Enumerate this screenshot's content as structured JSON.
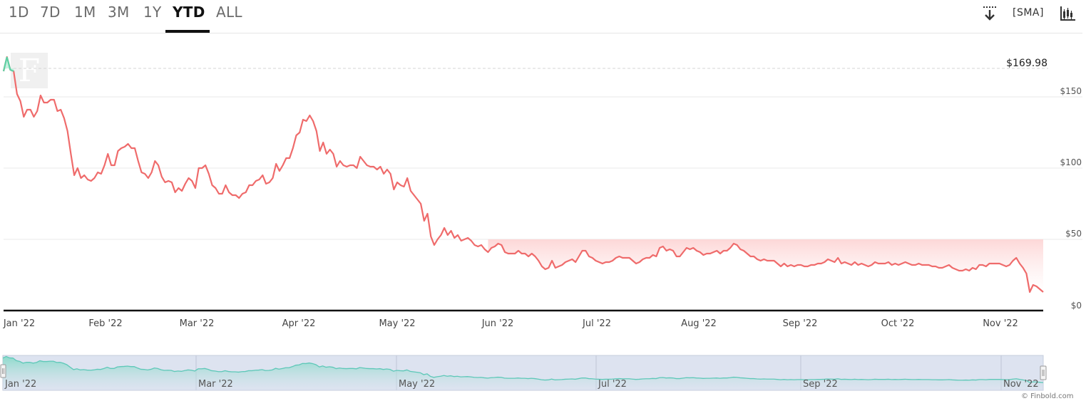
{
  "range_tabs": [
    {
      "label": "1D",
      "active": false
    },
    {
      "label": "7D",
      "active": false
    },
    {
      "label": "1M",
      "active": false
    },
    {
      "label": "3M",
      "active": false
    },
    {
      "label": "1Y",
      "active": false
    },
    {
      "label": "YTD",
      "active": true
    },
    {
      "label": "ALL",
      "active": false
    }
  ],
  "toolbar": {
    "download_icon": "download-icon",
    "sma_label": "[SMA]",
    "candlestick_icon": "candlestick-icon"
  },
  "credit": "© Finbold.com",
  "colors": {
    "line_down": "#ef6b6b",
    "line_up": "#5ed1a4",
    "fill_down": "#fde2e2",
    "navigator_bg": "#dde3f0",
    "navigator_line": "#5ec8b8"
  },
  "chart_data": {
    "type": "line",
    "start_label": "$169.98",
    "reference_value": 169.98,
    "ylim": [
      0,
      180
    ],
    "yticks": [
      {
        "value": 0,
        "label": "$0"
      },
      {
        "value": 50,
        "label": "$50"
      },
      {
        "value": 100,
        "label": "$100"
      },
      {
        "value": 150,
        "label": "$150"
      }
    ],
    "xticks": [
      "Jan '22",
      "Feb '22",
      "Mar '22",
      "Apr '22",
      "May '22",
      "Jun '22",
      "Jul '22",
      "Aug '22",
      "Sep '22",
      "Oct '22",
      "Nov '22"
    ],
    "navigator_ticks": [
      "Jan '22",
      "Mar '22",
      "May '22",
      "Jul '22",
      "Sep '22",
      "Nov '22"
    ],
    "series": [
      {
        "values": [
          168,
          178,
          169,
          168,
          152,
          147,
          136,
          141,
          141,
          136,
          140,
          151,
          146,
          146,
          148,
          148,
          140,
          141,
          135,
          126,
          110,
          95,
          100,
          93,
          95,
          92,
          91,
          93,
          97,
          96,
          102,
          110,
          102,
          102,
          112,
          114,
          115,
          117,
          114,
          114,
          105,
          97,
          96,
          93,
          97,
          105,
          102,
          94,
          90,
          91,
          90,
          83,
          86,
          84,
          89,
          93,
          91,
          86,
          100,
          100,
          102,
          96,
          88,
          86,
          82,
          82,
          88,
          83,
          81,
          81,
          79,
          82,
          83,
          88,
          88,
          91,
          92,
          95,
          89,
          90,
          93,
          103,
          98,
          102,
          107,
          107,
          114,
          123,
          125,
          134,
          133,
          137,
          133,
          126,
          112,
          118,
          110,
          113,
          110,
          101,
          105,
          102,
          101,
          102,
          102,
          100,
          108,
          105,
          102,
          101,
          101,
          99,
          101,
          96,
          99,
          96,
          85,
          90,
          88,
          87,
          93,
          84,
          81,
          78,
          75,
          63,
          68,
          52,
          46,
          50,
          53,
          58,
          53,
          56,
          51,
          53,
          49,
          50,
          51,
          49,
          46,
          45,
          46,
          43,
          41,
          44,
          45,
          47,
          46,
          41,
          40,
          40,
          40,
          42,
          40,
          40,
          38,
          40,
          38,
          35,
          31,
          29,
          30,
          35,
          30,
          31,
          32,
          34,
          35,
          36,
          34,
          38,
          42,
          42,
          38,
          37,
          35,
          34,
          33,
          34,
          34,
          35,
          37,
          38,
          37,
          37,
          37,
          35,
          33,
          34,
          36,
          37,
          37,
          39,
          38,
          44,
          45,
          42,
          43,
          42,
          38,
          38,
          41,
          44,
          43,
          44,
          42,
          41,
          39,
          40,
          40,
          41,
          42,
          40,
          42,
          42,
          44,
          47,
          46,
          43,
          42,
          40,
          38,
          38,
          36,
          35,
          36,
          35,
          35,
          35,
          33,
          31,
          33,
          31,
          32,
          31,
          32,
          32,
          31,
          31,
          32,
          32,
          33,
          33,
          34,
          36,
          35,
          34,
          37,
          33,
          34,
          33,
          32,
          34,
          32,
          33,
          32,
          31,
          32,
          34,
          33,
          33,
          33,
          34,
          32,
          33,
          32,
          33,
          34,
          33,
          32,
          32,
          33,
          32,
          32,
          32,
          31,
          31,
          30,
          30,
          31,
          32,
          30,
          29,
          28,
          28,
          29,
          28,
          30,
          29,
          32,
          32,
          31,
          33,
          33,
          33,
          33,
          32,
          31,
          32,
          35,
          37,
          33,
          30,
          26,
          13,
          18,
          17,
          15,
          13
        ]
      }
    ]
  }
}
